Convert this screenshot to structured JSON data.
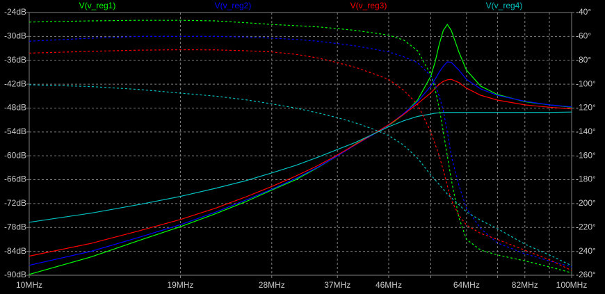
{
  "chart_data": {
    "type": "line",
    "x": [
      10,
      13,
      16,
      19,
      22,
      25,
      28,
      31,
      34,
      37,
      40,
      43,
      46,
      49,
      52,
      55,
      56,
      57,
      58,
      59,
      60,
      62,
      64,
      68,
      73,
      82,
      91,
      100
    ],
    "xlog": true,
    "grid": true,
    "xlim": [
      10,
      100
    ],
    "xticks": [
      {
        "value": 10,
        "label": "10MHz"
      },
      {
        "value": 19,
        "label": "19MHz"
      },
      {
        "value": 28,
        "label": "28MHz"
      },
      {
        "value": 37,
        "label": "37MHz"
      },
      {
        "value": 46,
        "label": "46MHz"
      },
      {
        "value": 55,
        "label": null
      },
      {
        "value": 64,
        "label": "64MHz"
      },
      {
        "value": 73,
        "label": null
      },
      {
        "value": 82,
        "label": "82MHz"
      },
      {
        "value": 91,
        "label": null
      },
      {
        "value": 100,
        "label": "100MHz"
      }
    ],
    "ylim": [
      -90,
      -24
    ],
    "yticks": [
      {
        "value": -24,
        "label": "-24dB"
      },
      {
        "value": -30,
        "label": "-30dB"
      },
      {
        "value": -36,
        "label": "-36dB"
      },
      {
        "value": -42,
        "label": "-42dB"
      },
      {
        "value": -48,
        "label": "-48dB"
      },
      {
        "value": -54,
        "label": "-54dB"
      },
      {
        "value": -60,
        "label": "-60dB"
      },
      {
        "value": -66,
        "label": "-66dB"
      },
      {
        "value": -72,
        "label": "-72dB"
      },
      {
        "value": -78,
        "label": "-78dB"
      },
      {
        "value": -84,
        "label": "-84dB"
      },
      {
        "value": -90,
        "label": "-90dB"
      }
    ],
    "y2lim": [
      -260,
      -40
    ],
    "y2ticks": [
      {
        "value": -40,
        "label": "-40°"
      },
      {
        "value": -60,
        "label": "-60°"
      },
      {
        "value": -80,
        "label": "-80°"
      },
      {
        "value": -100,
        "label": "-100°"
      },
      {
        "value": -120,
        "label": "-120°"
      },
      {
        "value": -140,
        "label": "-140°"
      },
      {
        "value": -160,
        "label": "-160°"
      },
      {
        "value": -180,
        "label": "-180°"
      },
      {
        "value": -200,
        "label": "-200°"
      },
      {
        "value": -220,
        "label": "-220°"
      },
      {
        "value": -240,
        "label": "-240°"
      },
      {
        "value": -260,
        "label": "-260°"
      }
    ],
    "series": [
      {
        "name": "V(v_reg1)",
        "color": "#00ff00",
        "values": [
          -89.8,
          -85.4,
          -81.2,
          -77.8,
          -74.6,
          -71.6,
          -68.6,
          -66,
          -63,
          -60,
          -57,
          -54.6,
          -52.4,
          -49.6,
          -46,
          -40,
          -36.5,
          -32,
          -28.5,
          -27,
          -28.5,
          -34,
          -38.5,
          -42.5,
          -44.6,
          -46.4,
          -47.2,
          -47.8
        ]
      },
      {
        "name": "V(v_reg2)",
        "color": "#0000ff",
        "values": [
          -87.5,
          -84,
          -80.4,
          -77.3,
          -74.2,
          -71.2,
          -68.4,
          -65.7,
          -62.9,
          -60,
          -57.2,
          -54.7,
          -52.3,
          -49.4,
          -46.4,
          -42.5,
          -40.8,
          -39,
          -37.5,
          -36.4,
          -36.5,
          -38.5,
          -40.8,
          -43.2,
          -44.8,
          -46.3,
          -47.2,
          -47.7
        ]
      },
      {
        "name": "V(v_reg3)",
        "color": "#ff0000",
        "values": [
          -85.2,
          -82,
          -78.8,
          -76,
          -73.2,
          -70.4,
          -67.7,
          -65.1,
          -62.5,
          -59.8,
          -57.1,
          -54.6,
          -52.2,
          -49.6,
          -46.9,
          -44.2,
          -43.1,
          -42,
          -41.3,
          -40.9,
          -40.8,
          -41.6,
          -43,
          -44.8,
          -46,
          -47.2,
          -47.8,
          -48.2
        ]
      },
      {
        "name": "V(v_reg4)",
        "color": "#00c0c0",
        "values": [
          -76.7,
          -74.4,
          -72.2,
          -70.2,
          -68.2,
          -66.3,
          -64.3,
          -62.4,
          -60.4,
          -58.4,
          -56.6,
          -54.6,
          -52.7,
          -51.2,
          -50.1,
          -49.5,
          -49.3,
          -49.2,
          -49.1,
          -49.1,
          -49.1,
          -49.1,
          -49.1,
          -49.1,
          -49.1,
          -49.1,
          -49.1,
          -49
        ]
      },
      {
        "axis": "y2",
        "dashed": true,
        "color": "#00ff00",
        "values": [
          -48,
          -47,
          -46.5,
          -46.5,
          -47,
          -48.5,
          -50,
          -51,
          -52,
          -53.5,
          -55,
          -57,
          -59,
          -63,
          -72,
          -92,
          -104,
          -120,
          -140,
          -160,
          -180,
          -212,
          -230,
          -239,
          -243,
          -248,
          -253,
          -258
        ]
      },
      {
        "axis": "y2",
        "dashed": true,
        "color": "#0000ff",
        "values": [
          -64,
          -61.5,
          -60,
          -60,
          -60,
          -60.5,
          -61.5,
          -62.5,
          -64,
          -66,
          -68,
          -70.5,
          -73,
          -77,
          -82,
          -93,
          -100,
          -110,
          -122,
          -140,
          -160,
          -185,
          -204,
          -221,
          -233,
          -242,
          -248,
          -253
        ]
      },
      {
        "axis": "y2",
        "dashed": true,
        "color": "#ff0000",
        "values": [
          -74,
          -72.5,
          -71.5,
          -71.2,
          -71.3,
          -72,
          -73,
          -75,
          -78,
          -82,
          -86,
          -91,
          -96,
          -105,
          -117,
          -140,
          -150,
          -160,
          -172,
          -185,
          -197,
          -210,
          -218,
          -225,
          -230,
          -239,
          -247,
          -256
        ]
      },
      {
        "axis": "y2",
        "dashed": true,
        "color": "#00c0c0",
        "values": [
          -100.5,
          -102,
          -104.5,
          -107.5,
          -110,
          -113,
          -116.5,
          -120,
          -124,
          -128,
          -132.5,
          -137.5,
          -143,
          -151,
          -162,
          -176,
          -180,
          -184,
          -188,
          -192,
          -195,
          -201,
          -207,
          -214,
          -221,
          -234,
          -243,
          -252
        ]
      }
    ]
  }
}
